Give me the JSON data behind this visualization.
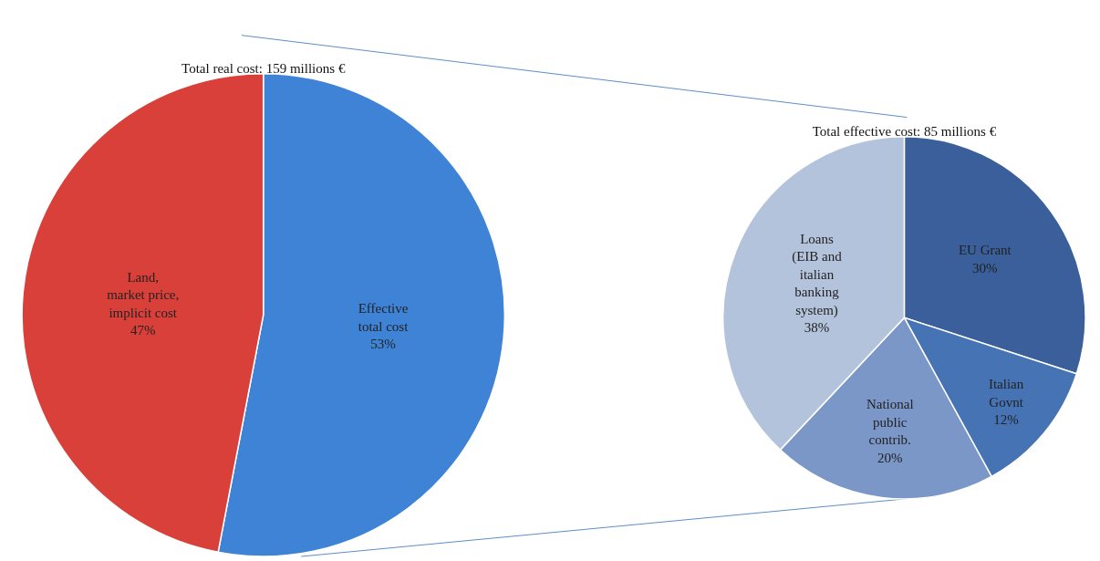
{
  "chart_data": [
    {
      "type": "pie",
      "title": "Total real cost: 159 millions €",
      "categories": [
        "Effective\ntotal cost",
        "Land,\nmarket price,\nimplicit cost"
      ],
      "values": [
        53,
        47
      ],
      "value_labels": [
        "53%",
        "47%"
      ],
      "colors": [
        "#3f83d6",
        "#d9403a"
      ]
    },
    {
      "type": "pie",
      "title": "Total effective cost: 85 millions €",
      "categories": [
        "EU Grant",
        "Italian\nGovnt",
        "National\npublic\ncontrib.",
        "Loans\n(EIB and\nitalian\nbanking\nsystem)"
      ],
      "values": [
        30,
        12,
        20,
        38
      ],
      "value_labels": [
        "30%",
        "12%",
        "20%",
        "38%"
      ],
      "colors": [
        "#3a5f9a",
        "#4673b4",
        "#7b97c8",
        "#b4c3dc"
      ]
    }
  ]
}
